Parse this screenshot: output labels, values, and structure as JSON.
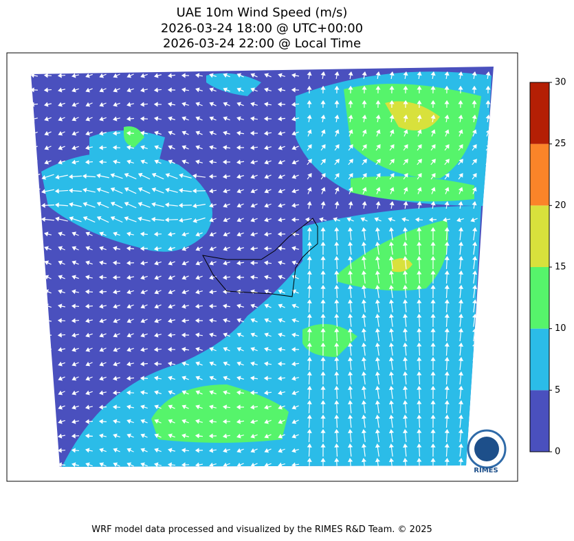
{
  "title": [
    "UAE 10m Wind Speed (m/s)",
    "2026-03-24 18:00 @ UTC+00:00",
    "2026-03-24 22:00 @ Local Time"
  ],
  "colorbar": {
    "ticks": [
      0,
      5,
      10,
      15,
      20,
      25,
      30
    ],
    "colors": [
      "#4a50be",
      "#2bbce8",
      "#56f46b",
      "#d8e13c",
      "#fb8429",
      "#b41f05"
    ]
  },
  "logo": "RIMES",
  "footer": "WRF model data processed and visualized by the RIMES R&D Team. © 2025"
}
